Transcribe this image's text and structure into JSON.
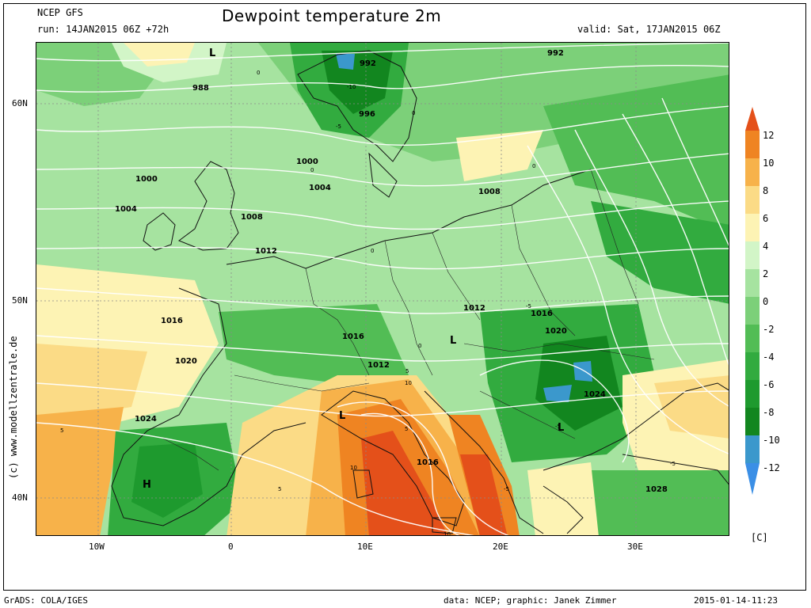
{
  "header": {
    "model": "NCEP GFS",
    "run": "run: 14JAN2015 06Z +72h",
    "title": "Dewpoint temperature 2m",
    "valid": "valid: Sat, 17JAN2015 06Z"
  },
  "map": {
    "lat_labels": [
      "60N",
      "50N",
      "40N"
    ],
    "lon_labels": [
      "10W",
      "0",
      "10E",
      "20E",
      "30E"
    ],
    "pressure_labels": [
      "992",
      "992",
      "988",
      "996",
      "1000",
      "1000",
      "1004",
      "1004",
      "1008",
      "1008",
      "1012",
      "1012",
      "1012",
      "1016",
      "1016",
      "1016",
      "1016",
      "1020",
      "1020",
      "1024",
      "1024",
      "1028"
    ],
    "centers": [
      "L",
      "L",
      "L",
      "L",
      "H"
    ],
    "dewpoint_labels": [
      "-10",
      "-5",
      "-5",
      "-5",
      "-5",
      "-5",
      "0",
      "0",
      "0",
      "0",
      "0",
      "0",
      "5",
      "5",
      "5",
      "5",
      "10",
      "10",
      "10"
    ],
    "colors": {
      "c_m12": "#3b98cc",
      "c_m10": "#12861f",
      "c_m8": "#1e9a2e",
      "c_m6": "#32ab3f",
      "c_m4": "#52bd55",
      "c_m2": "#7cd079",
      "c_0": "#a6e3a0",
      "c_2": "#d2f5c7",
      "c_4": "#fdf3b4",
      "c_6": "#fbdb86",
      "c_8": "#f7b24a",
      "c_10": "#ef8422",
      "c_12": "#e4501a"
    }
  },
  "colorbar": {
    "labels": [
      "12",
      "10",
      "8",
      "6",
      "4",
      "2",
      "0",
      "-2",
      "-4",
      "-6",
      "-8",
      "-10",
      "-12"
    ],
    "unit": "[C]"
  },
  "watermark": "(c) www.modellzentrale.de",
  "footer": {
    "software": "GrADS: COLA/IGES",
    "credit": "data: NCEP; graphic: Janek Zimmer",
    "timestamp": "2015-01-14-11:23"
  }
}
